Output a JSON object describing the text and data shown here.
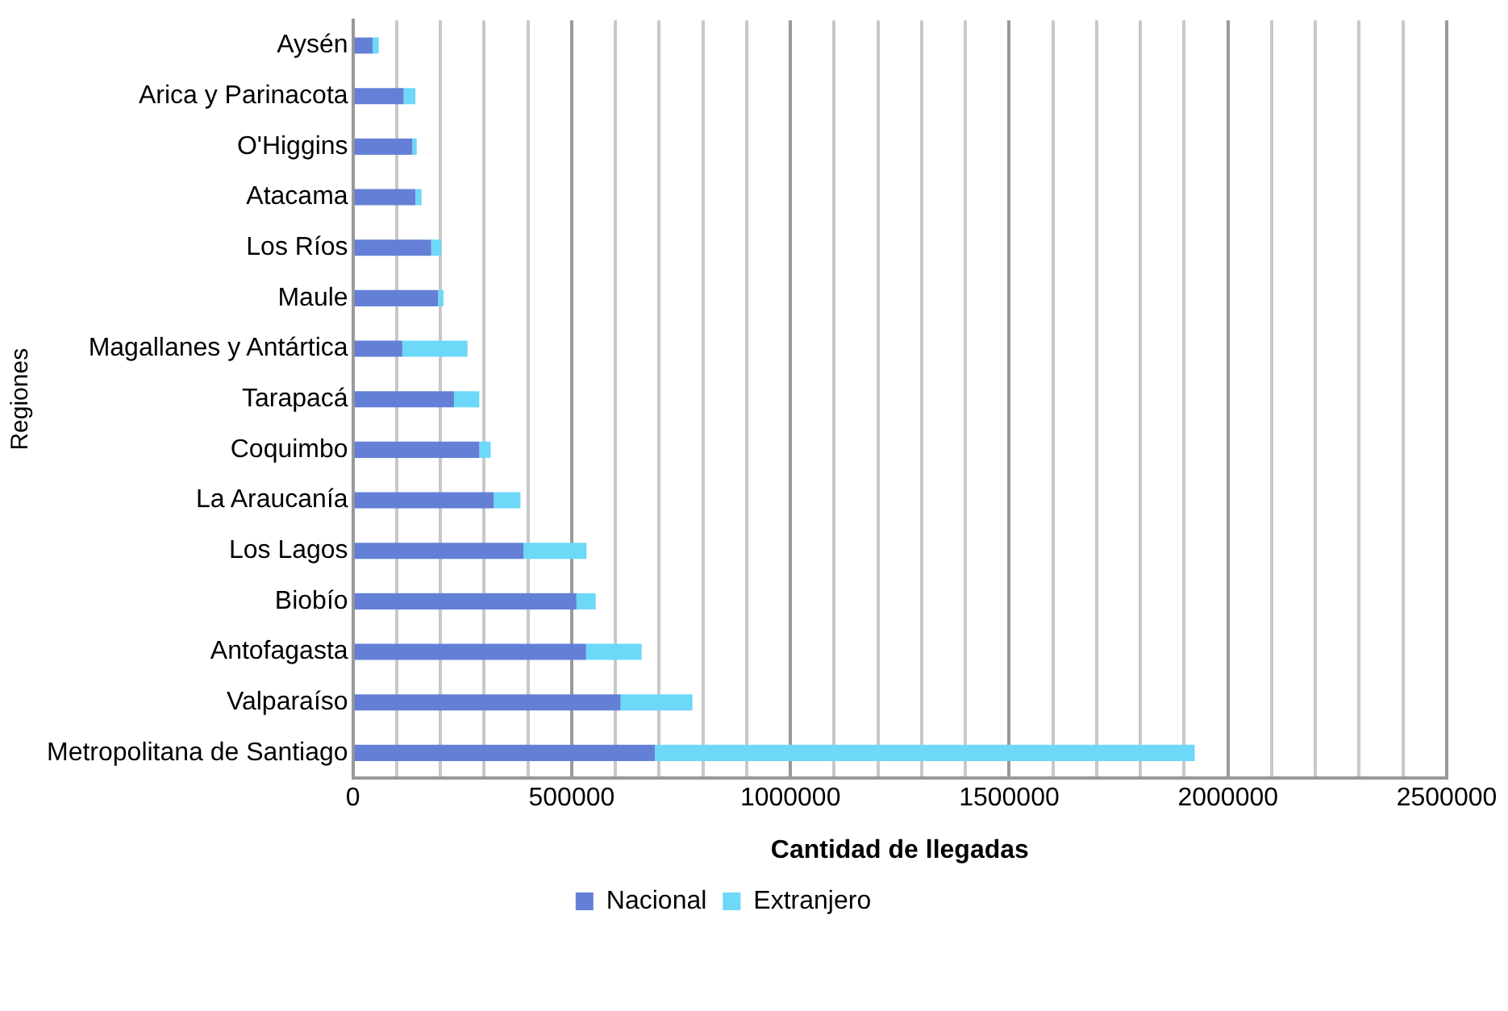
{
  "chart_data": {
    "type": "bar",
    "orientation": "horizontal",
    "stacked": true,
    "xlabel": "Cantidad de llegadas",
    "ylabel": "Regiones",
    "categories": [
      "Aysén",
      "Arica y Parinacota",
      "O'Higgins",
      "Atacama",
      "Los Ríos",
      "Maule",
      "Magallanes y Antártica",
      "Tarapacá",
      "Coquimbo",
      "La Araucanía",
      "Los Lagos",
      "Biobío",
      "Antofagasta",
      "Valparaíso",
      "Metropolitana de Santiago"
    ],
    "series": [
      {
        "name": "Nacional",
        "color": "#6380d6",
        "values": [
          45000,
          116000,
          136000,
          143000,
          179000,
          195000,
          113000,
          231000,
          289000,
          322000,
          390000,
          511000,
          533000,
          612000,
          690000
        ]
      },
      {
        "name": "Extranjero",
        "color": "#6dd8f7",
        "values": [
          14000,
          27000,
          10000,
          14000,
          23000,
          12000,
          149000,
          58000,
          26000,
          61000,
          144000,
          44000,
          127000,
          164000,
          1234000
        ]
      }
    ],
    "xlim": [
      0,
      2500000
    ],
    "xticks": [
      0,
      {
        "value": 100000,
        "label": null
      },
      {
        "value": 200000,
        "label": null
      },
      {
        "value": 300000,
        "label": null
      },
      {
        "value": 400000,
        "label": null
      },
      500000,
      {
        "value": 600000,
        "label": null
      },
      {
        "value": 700000,
        "label": null
      },
      {
        "value": 800000,
        "label": null
      },
      {
        "value": 900000,
        "label": null
      },
      1000000,
      {
        "value": 1100000,
        "label": null
      },
      {
        "value": 1200000,
        "label": null
      },
      {
        "value": 1300000,
        "label": null
      },
      {
        "value": 1400000,
        "label": null
      },
      1500000,
      {
        "value": 1600000,
        "label": null
      },
      {
        "value": 1700000,
        "label": null
      },
      {
        "value": 1800000,
        "label": null
      },
      {
        "value": 1900000,
        "label": null
      },
      2000000,
      {
        "value": 2100000,
        "label": null
      },
      {
        "value": 2200000,
        "label": null
      },
      {
        "value": 2300000,
        "label": null
      },
      {
        "value": 2400000,
        "label": null
      },
      2500000
    ],
    "grid": "x",
    "legend": "bottom"
  }
}
